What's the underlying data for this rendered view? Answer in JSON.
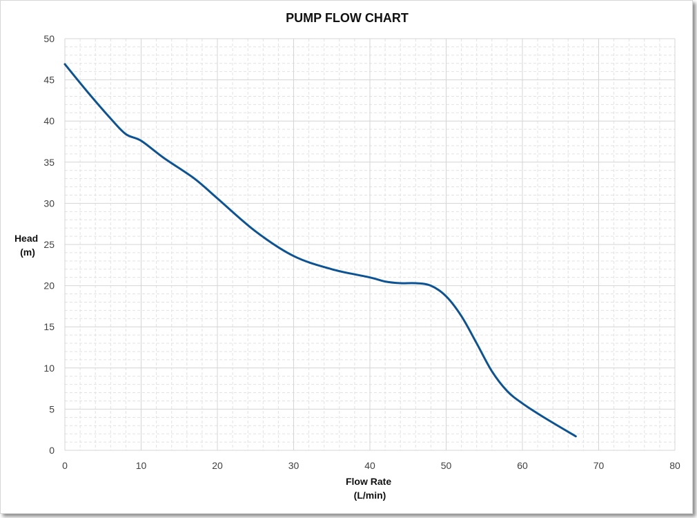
{
  "chart_data": {
    "type": "line",
    "title": "PUMP FLOW CHART",
    "xlabel_lines": [
      "Flow Rate",
      "(L/min)"
    ],
    "ylabel_lines": [
      "Head",
      "(m)"
    ],
    "xlim": [
      0,
      80
    ],
    "ylim": [
      0,
      50
    ],
    "x_major_step": 10,
    "y_major_step": 5,
    "x_ticks": [
      "0",
      "10",
      "20",
      "30",
      "40",
      "50",
      "60",
      "70",
      "80"
    ],
    "y_ticks": [
      "0",
      "5",
      "10",
      "15",
      "20",
      "25",
      "30",
      "35",
      "40",
      "45",
      "50"
    ],
    "grid": "major solid, minor dashed",
    "series": [
      {
        "color": "#0b5394",
        "x": [
          0,
          3,
          6,
          8,
          10,
          13,
          17,
          20,
          25,
          30,
          35,
          40,
          42,
          44,
          46,
          48,
          50,
          52,
          54,
          56,
          58,
          60,
          63,
          67
        ],
        "y": [
          46.9,
          43.5,
          40.3,
          38.4,
          37.6,
          35.5,
          33,
          30.6,
          26.6,
          23.6,
          22,
          21,
          20.5,
          20.3,
          20.3,
          20,
          18.7,
          16.3,
          13,
          9.6,
          7.2,
          5.7,
          3.9,
          1.7
        ]
      }
    ]
  }
}
